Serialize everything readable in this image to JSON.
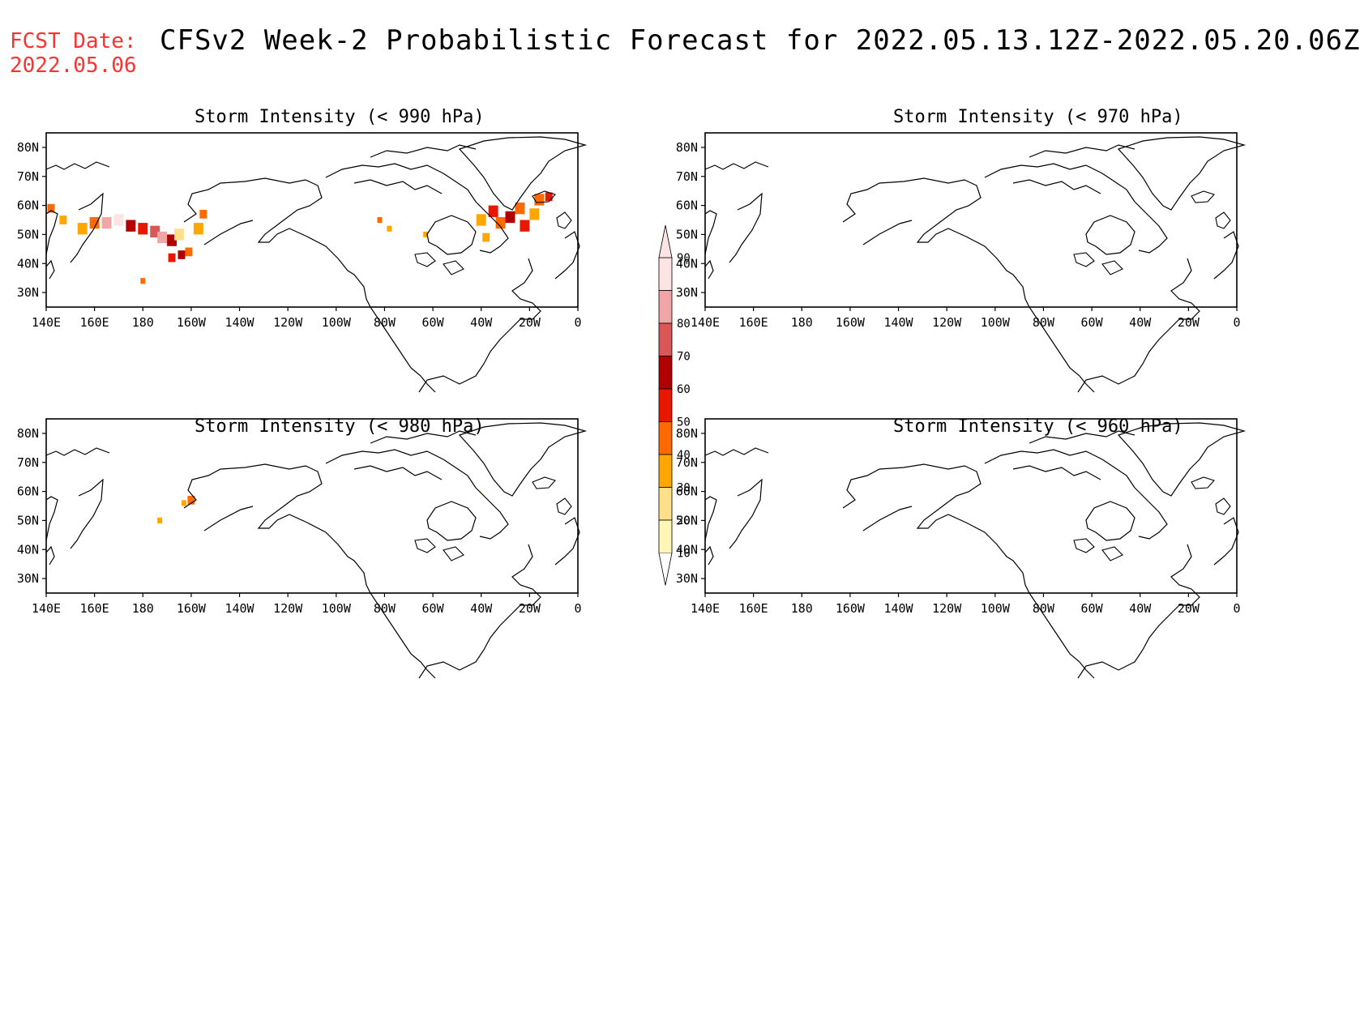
{
  "header": {
    "fcst_label": "FCST Date:",
    "fcst_date": "2022.05.06",
    "title": "CFSv2 Week-2 Probabilistic Forecast for 2022.05.13.12Z-2022.05.20.06Z"
  },
  "panels": [
    {
      "title": "Storm Intensity (< 990 hPa)"
    },
    {
      "title": "Storm Intensity (< 970 hPa)"
    },
    {
      "title": "Storm Intensity (< 980 hPa)"
    },
    {
      "title": "Storm Intensity (< 960 hPa)"
    }
  ],
  "axes": {
    "lon_labels": [
      "140E",
      "160E",
      "180",
      "160W",
      "140W",
      "120W",
      "100W",
      "80W",
      "60W",
      "40W",
      "20W",
      "0"
    ],
    "lat_labels": [
      "80N",
      "70N",
      "60N",
      "50N",
      "40N",
      "30N"
    ]
  },
  "colorbar": {
    "labels": [
      "10",
      "20",
      "30",
      "40",
      "50",
      "60",
      "70",
      "80",
      "90"
    ],
    "colors": [
      "#fff6b8",
      "#ffe08a",
      "#ffa600",
      "#ff6a00",
      "#e81800",
      "#b00000",
      "#d85858",
      "#f0a6a6",
      "#fde4e4"
    ]
  },
  "chart_data": [
    {
      "type": "heatmap",
      "title": "Storm Intensity (< 990 hPa)",
      "lon_range": [
        "140E",
        "0"
      ],
      "lat_range": [
        "25N",
        "85N"
      ],
      "regions": [
        {
          "lon": "175E-155W",
          "lat": "50N-60N",
          "probability_pct": [
            20,
            80
          ]
        },
        {
          "lon": "165W-160W",
          "lat": "40N-45N",
          "probability_pct": [
            30,
            60
          ]
        },
        {
          "lon": "180",
          "lat": "34N",
          "probability_pct": [
            30,
            50
          ]
        },
        {
          "lon": "50W-15W",
          "lat": "48N-65N",
          "probability_pct": [
            20,
            60
          ]
        },
        {
          "lon": "82W",
          "lat": "55N",
          "probability_pct": [
            20,
            50
          ]
        }
      ]
    },
    {
      "type": "heatmap",
      "title": "Storm Intensity (< 970 hPa)",
      "regions": []
    },
    {
      "type": "heatmap",
      "title": "Storm Intensity (< 980 hPa)",
      "regions": [
        {
          "lon": "160W",
          "lat": "57N",
          "probability_pct": [
            20,
            50
          ]
        },
        {
          "lon": "173W",
          "lat": "50N",
          "probability_pct": [
            20,
            40
          ]
        }
      ]
    },
    {
      "type": "heatmap",
      "title": "Storm Intensity (< 960 hPa)",
      "regions": []
    }
  ]
}
